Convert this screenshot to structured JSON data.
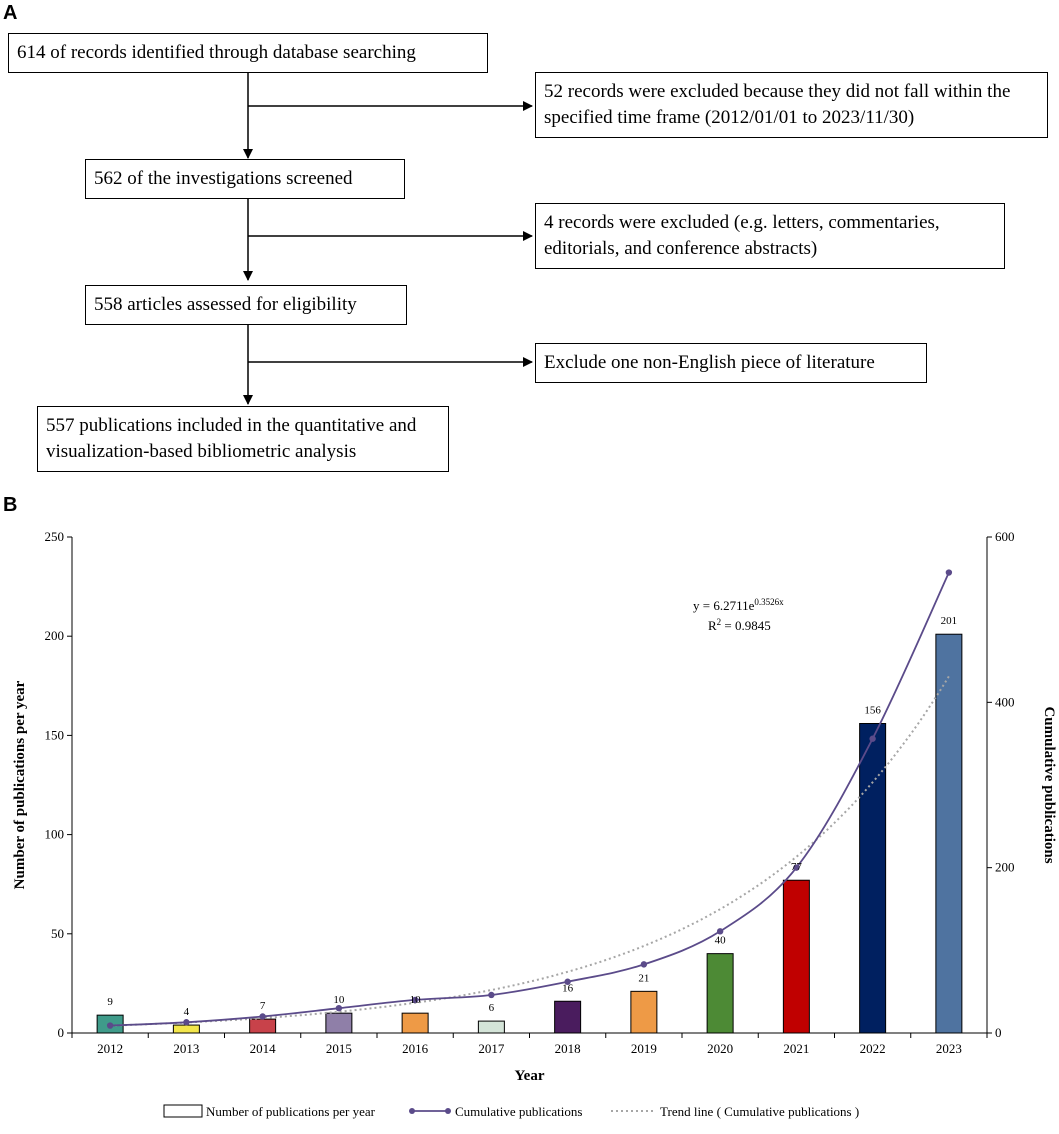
{
  "panels": {
    "a": "A",
    "b": "B"
  },
  "flowchart": {
    "identified": "614 of records identified through database searching",
    "excluded_time": "52 records were excluded because they did not fall within the specified time frame (2012/01/01 to 2023/11/30)",
    "screened": "562 of the investigations screened",
    "excluded_type": "4 records were excluded (e.g. letters, commentaries, editorials, and conference abstracts)",
    "assessed": "558 articles assessed for eligibility",
    "excluded_language": "Exclude one non-English piece of literature",
    "included": "557 publications included in the quantitative and visualization-based bibliometric analysis"
  },
  "chart_data": {
    "type": "bar",
    "xlabel": "Year",
    "ylabel": "Number of publications per year",
    "y2label": "Cumulative publications",
    "categories": [
      "2012",
      "2013",
      "2014",
      "2015",
      "2016",
      "2017",
      "2018",
      "2019",
      "2020",
      "2021",
      "2022",
      "2023"
    ],
    "ylim": [
      0,
      250
    ],
    "yticks": [
      0,
      50,
      100,
      150,
      200,
      250
    ],
    "y2lim": [
      0,
      600
    ],
    "y2ticks": [
      0,
      200,
      400,
      600
    ],
    "series": [
      {
        "name": "Number of publications per year",
        "axis": "left",
        "values": [
          9,
          4,
          7,
          10,
          10,
          6,
          16,
          21,
          40,
          77,
          156,
          201
        ],
        "labels": [
          "9",
          "4",
          "7",
          "10",
          "10",
          "6",
          "16",
          "21",
          "40",
          "77",
          "156",
          "201"
        ],
        "colors": [
          "#3f9b8a",
          "#f3e64c",
          "#c8424a",
          "#8f7fa8",
          "#ee9a46",
          "#d4e4d8",
          "#4a1c5e",
          "#ee9a46",
          "#4d8a35",
          "#c00000",
          "#002060",
          "#4f73a0"
        ]
      },
      {
        "name": "Cumulative publications",
        "axis": "right",
        "type": "line",
        "color": "#5b4b8a",
        "values": [
          9,
          13,
          20,
          30,
          40,
          46,
          62,
          83,
          123,
          200,
          356,
          557
        ]
      },
      {
        "name": "Trend line ( Cumulative publications )",
        "axis": "right",
        "type": "trend",
        "color": "#a6a6a6",
        "equation_a": 6.2711,
        "equation_b": 0.3526
      }
    ],
    "annotation": {
      "eq_base": "y = 6.2711e",
      "eq_exp": "0.3526x",
      "r2_prefix": "R",
      "r2_sup": "2",
      "r2_suffix": " = 0.9845"
    },
    "legend": [
      "Number of publications per year",
      "Cumulative publications",
      "Trend line ( Cumulative publications )"
    ],
    "legend_position": "bottom"
  }
}
